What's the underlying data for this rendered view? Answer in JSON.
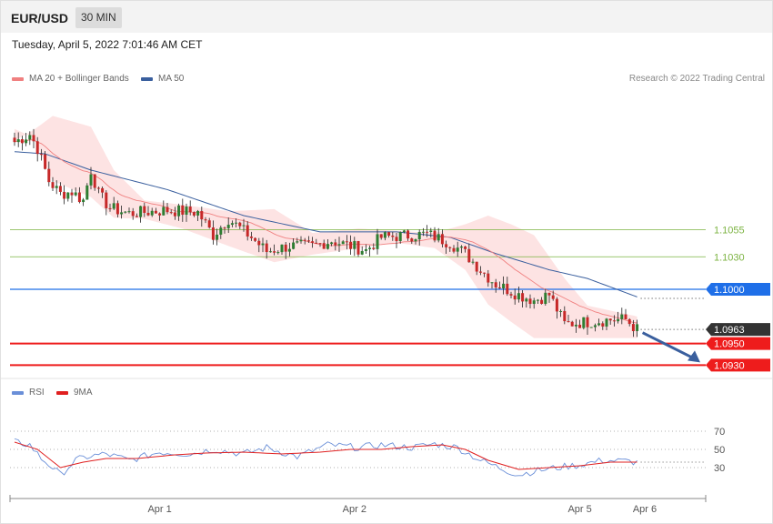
{
  "header": {
    "symbol": "EUR/USD",
    "timeframe": "30 MIN",
    "date": "Tuesday, April 5, 2022 7:01:46 AM CET"
  },
  "legend_top": [
    {
      "label": "MA 20 + Bollinger Bands",
      "color": "#f08080"
    },
    {
      "label": "MA 50",
      "color": "#3a5f9e"
    }
  ],
  "credit": "Research © 2022 Trading Central",
  "legend_bottom": [
    {
      "label": "RSI",
      "color": "#6a8fd8"
    },
    {
      "label": "9MA",
      "color": "#e02020"
    }
  ],
  "chart_data": [
    {
      "type": "candlestick",
      "title": "EUR/USD 30 MIN",
      "x_tick_labels": [
        "Apr 1",
        "Apr 2",
        "Apr 5",
        "Apr 6"
      ],
      "ylim": [
        1.0927,
        1.1183
      ],
      "price_levels": [
        {
          "label": "1.1055",
          "value": 1.1055,
          "kind": "resistance",
          "color": "#7cb342"
        },
        {
          "label": "1.1030",
          "value": 1.103,
          "kind": "resistance",
          "color": "#7cb342"
        },
        {
          "label": "1.1000",
          "value": 1.1,
          "kind": "pivot",
          "color": "#1f6fe8"
        },
        {
          "label": "1.0963",
          "value": 1.0963,
          "kind": "last",
          "color": "#333333"
        },
        {
          "label": "1.0950",
          "value": 1.095,
          "kind": "target",
          "color": "#ee1c1c"
        },
        {
          "label": "1.0930",
          "value": 1.093,
          "kind": "target",
          "color": "#ee1c1c"
        }
      ],
      "close_anchors": [
        [
          0,
          1.1136
        ],
        [
          4,
          1.1143
        ],
        [
          6,
          1.113
        ],
        [
          9,
          1.11
        ],
        [
          12,
          1.1088
        ],
        [
          15,
          1.109
        ],
        [
          18,
          1.1082
        ],
        [
          20,
          1.111
        ],
        [
          22,
          1.1088
        ],
        [
          25,
          1.1075
        ],
        [
          30,
          1.107
        ],
        [
          40,
          1.1073
        ],
        [
          48,
          1.1071
        ],
        [
          52,
          1.105
        ],
        [
          56,
          1.1065
        ],
        [
          62,
          1.1048
        ],
        [
          66,
          1.1035
        ],
        [
          72,
          1.104
        ],
        [
          78,
          1.104
        ],
        [
          83,
          1.1045
        ],
        [
          88,
          1.104
        ],
        [
          92,
          1.1036
        ],
        [
          96,
          1.1048
        ],
        [
          108,
          1.1051
        ],
        [
          114,
          1.1043
        ],
        [
          118,
          1.1033
        ],
        [
          122,
          1.1018
        ],
        [
          126,
          1.1005
        ],
        [
          132,
          1.0995
        ],
        [
          136,
          1.099
        ],
        [
          140,
          1.0995
        ],
        [
          144,
          1.0968
        ],
        [
          150,
          1.097
        ],
        [
          156,
          1.0972
        ],
        [
          160,
          1.0972
        ],
        [
          163,
          1.0963
        ]
      ],
      "ma50_anchors": [
        [
          0,
          1.1127
        ],
        [
          8,
          1.1125
        ],
        [
          20,
          1.111
        ],
        [
          40,
          1.1092
        ],
        [
          60,
          1.1068
        ],
        [
          80,
          1.1053
        ],
        [
          100,
          1.1053
        ],
        [
          114,
          1.1048
        ],
        [
          126,
          1.1033
        ],
        [
          140,
          1.1018
        ],
        [
          150,
          1.101
        ],
        [
          163,
          1.0993
        ]
      ],
      "band_anchors": [
        [
          0,
          1.1137,
          1.1148
        ],
        [
          5,
          1.1147,
          1.114
        ],
        [
          10,
          1.116,
          1.11
        ],
        [
          20,
          1.115,
          1.1085
        ],
        [
          26,
          1.111,
          1.1066
        ],
        [
          34,
          1.1082,
          1.1065
        ],
        [
          44,
          1.1078,
          1.1056
        ],
        [
          56,
          1.1072,
          1.104
        ],
        [
          68,
          1.1074,
          1.1025
        ],
        [
          78,
          1.1052,
          1.1032
        ],
        [
          90,
          1.1056,
          1.1038
        ],
        [
          100,
          1.1054,
          1.1043
        ],
        [
          110,
          1.1052,
          1.1038
        ],
        [
          118,
          1.106,
          1.1018
        ],
        [
          124,
          1.1068,
          1.0986
        ],
        [
          130,
          1.106,
          1.097
        ],
        [
          136,
          1.105,
          1.0955
        ],
        [
          144,
          1.101,
          1.0955
        ],
        [
          150,
          1.0985,
          1.0955
        ],
        [
          163,
          1.0975,
          1.0955
        ]
      ],
      "forecast_arrow": {
        "from": 1.096,
        "to": 1.093
      }
    },
    {
      "type": "line",
      "title": "RSI",
      "ylim": [
        0,
        100
      ],
      "reference_lines": [
        70,
        50,
        30
      ],
      "y_tick_labels": [
        "70",
        "50",
        "30"
      ],
      "rsi_anchors": [
        [
          0,
          58
        ],
        [
          4,
          55
        ],
        [
          7,
          40
        ],
        [
          10,
          30
        ],
        [
          12,
          22
        ],
        [
          16,
          38
        ],
        [
          19,
          42
        ],
        [
          24,
          45
        ],
        [
          30,
          38
        ],
        [
          38,
          47
        ],
        [
          46,
          45
        ],
        [
          52,
          50
        ],
        [
          60,
          45
        ],
        [
          66,
          52
        ],
        [
          74,
          42
        ],
        [
          82,
          55
        ],
        [
          90,
          52
        ],
        [
          96,
          55
        ],
        [
          104,
          52
        ],
        [
          110,
          56
        ],
        [
          116,
          52
        ],
        [
          122,
          38
        ],
        [
          128,
          28
        ],
        [
          132,
          22
        ],
        [
          136,
          26
        ],
        [
          142,
          30
        ],
        [
          148,
          33
        ],
        [
          154,
          38
        ],
        [
          160,
          37
        ],
        [
          163,
          36
        ]
      ],
      "ma9_anchors": [
        [
          0,
          58
        ],
        [
          6,
          50
        ],
        [
          12,
          30
        ],
        [
          18,
          36
        ],
        [
          24,
          40
        ],
        [
          32,
          40
        ],
        [
          42,
          44
        ],
        [
          50,
          46
        ],
        [
          60,
          47
        ],
        [
          70,
          45
        ],
        [
          80,
          47
        ],
        [
          88,
          50
        ],
        [
          96,
          50
        ],
        [
          104,
          53
        ],
        [
          112,
          55
        ],
        [
          118,
          50
        ],
        [
          124,
          38
        ],
        [
          132,
          28
        ],
        [
          140,
          30
        ],
        [
          148,
          32
        ],
        [
          156,
          36
        ],
        [
          163,
          36
        ]
      ]
    }
  ]
}
